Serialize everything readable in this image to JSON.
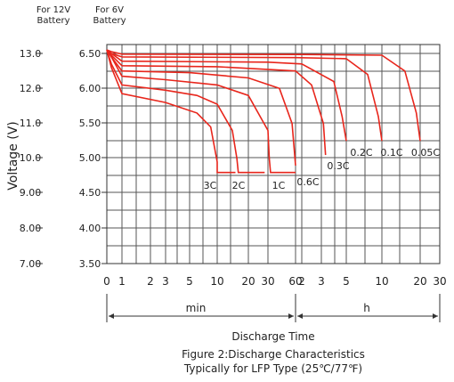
{
  "chart_data": {
    "type": "line",
    "title": "Figure 2:Discharge Characteristics",
    "subtitle": "Typically for LFP Type (25℃/77℉)",
    "xlabel": "Discharge Time",
    "ylabel": "Voltage (V)",
    "y_axis_12v": {
      "header": [
        "For 12V",
        "Battery"
      ],
      "ticks": [
        "13.0",
        "12.0",
        "11.0",
        "10.0",
        "9.00",
        "8.00",
        "7.00"
      ]
    },
    "y_axis_6v": {
      "header": [
        "For 6V",
        "Battery"
      ],
      "ticks": [
        "6.50",
        "6.00",
        "5.50",
        "5.00",
        "4.50",
        "4.00",
        "3.50"
      ]
    },
    "ylim_12v": [
      7.0,
      13.0
    ],
    "ylim_6v": [
      3.5,
      6.5
    ],
    "x_ticks": [
      "0",
      "1",
      "2",
      "3",
      "5",
      "10",
      "20",
      "30",
      "60",
      "2",
      "3",
      "5",
      "10",
      "20",
      "30"
    ],
    "x_tick_positions": [
      0,
      1,
      2,
      3,
      5,
      10,
      20,
      30,
      60,
      120,
      180,
      300,
      600,
      1200,
      1800
    ],
    "time_unit": "min",
    "range_labels": {
      "min": "min",
      "h": "h"
    },
    "grid": true,
    "colors": {
      "curve": "#e8261c",
      "grid": "#555555",
      "axis": "#333333",
      "text": "#222222"
    },
    "series": [
      {
        "name": "3C",
        "x": [
          0,
          0.3,
          1,
          3,
          6,
          8.5,
          10,
          10,
          15
        ],
        "y": [
          13.1,
          12.6,
          11.85,
          11.6,
          11.3,
          10.9,
          9.9,
          9.6,
          9.6
        ]
      },
      {
        "name": "2C",
        "x": [
          0,
          0.3,
          1,
          3,
          6,
          10,
          14,
          15.5,
          16,
          28
        ],
        "y": [
          13.1,
          12.7,
          12.1,
          11.95,
          11.8,
          11.55,
          10.8,
          10.0,
          9.6,
          9.6
        ]
      },
      {
        "name": "1C",
        "x": [
          0,
          0.3,
          1,
          3,
          10,
          20,
          30,
          31,
          32,
          60
        ],
        "y": [
          13.1,
          12.9,
          12.35,
          12.25,
          12.1,
          11.8,
          10.8,
          10.0,
          9.6,
          9.6
        ]
      },
      {
        "name": "0.6C",
        "x": [
          0,
          0.3,
          1,
          5,
          20,
          40,
          55,
          60
        ],
        "y": [
          13.1,
          12.9,
          12.5,
          12.45,
          12.3,
          12.0,
          11.0,
          9.8
        ]
      },
      {
        "name": "0.3C",
        "x": [
          0,
          0.3,
          1,
          10,
          60,
          150,
          190,
          200
        ],
        "y": [
          13.1,
          12.95,
          12.65,
          12.62,
          12.5,
          12.1,
          11.0,
          10.1
        ]
      },
      {
        "name": "0.2C",
        "x": [
          0,
          0.3,
          1,
          30,
          120,
          240,
          280,
          300
        ],
        "y": [
          13.1,
          13.0,
          12.78,
          12.75,
          12.7,
          12.2,
          11.2,
          10.5
        ]
      },
      {
        "name": "0.1C",
        "x": [
          0,
          0.3,
          1,
          60,
          300,
          480,
          570,
          600
        ],
        "y": [
          13.1,
          13.0,
          12.9,
          12.88,
          12.85,
          12.4,
          11.2,
          10.5
        ]
      },
      {
        "name": "0.05C",
        "x": [
          0,
          0.3,
          1,
          120,
          600,
          960,
          1140,
          1200
        ],
        "y": [
          13.1,
          13.05,
          12.98,
          12.97,
          12.95,
          12.5,
          11.3,
          10.5
        ]
      }
    ],
    "endpoint_labels": [
      "3C",
      "2C",
      "1C",
      "0.6C",
      "0.3C",
      "0.2C",
      "0.1C",
      "0.05C"
    ]
  }
}
